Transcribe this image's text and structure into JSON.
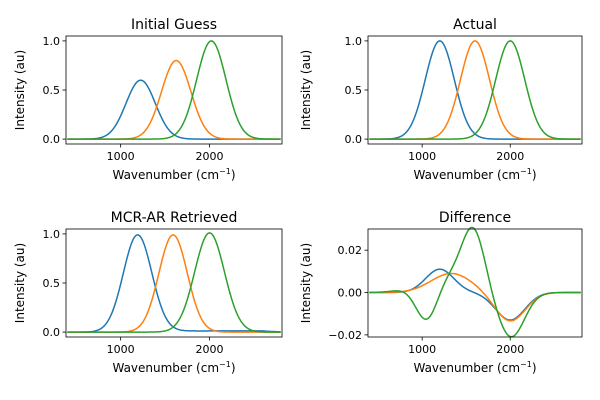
{
  "chart_data": [
    {
      "type": "line",
      "title": "Initial Guess",
      "xlabel": "Wavenumber (cm",
      "xlabel_sup": "−1",
      "xlabel_close": ")",
      "ylabel": "Intensity (au)",
      "xlim": [
        385,
        2815
      ],
      "ylim": [
        -0.05,
        1.05
      ],
      "xticks": [
        "1000",
        "2000"
      ],
      "yticks": [
        "0.0",
        "0.5",
        "1.0"
      ],
      "xtick_values": [
        1000,
        2000
      ],
      "ytick_values": [
        0,
        0.5,
        1
      ],
      "series": [
        {
          "color": "#1f77b4",
          "kind": "gauss",
          "amp": 0.6,
          "center": 1225,
          "sigma": 165
        },
        {
          "color": "#ff7f0e",
          "kind": "gauss",
          "amp": 0.8,
          "center": 1625,
          "sigma": 165
        },
        {
          "color": "#2ca02c",
          "kind": "gauss",
          "amp": 1.0,
          "center": 2020,
          "sigma": 165
        }
      ]
    },
    {
      "type": "line",
      "title": "Actual",
      "xlabel": "Wavenumber (cm",
      "xlabel_sup": "−1",
      "xlabel_close": ")",
      "ylabel": "Intensity (au)",
      "xlim": [
        385,
        2815
      ],
      "ylim": [
        -0.05,
        1.05
      ],
      "xticks": [
        "1000",
        "2000"
      ],
      "yticks": [
        "0.0",
        "0.5",
        "1.0"
      ],
      "xtick_values": [
        1000,
        2000
      ],
      "ytick_values": [
        0,
        0.5,
        1
      ],
      "series": [
        {
          "color": "#1f77b4",
          "kind": "gauss",
          "amp": 1.0,
          "center": 1200,
          "sigma": 165
        },
        {
          "color": "#ff7f0e",
          "kind": "gauss",
          "amp": 1.0,
          "center": 1600,
          "sigma": 165
        },
        {
          "color": "#2ca02c",
          "kind": "gauss",
          "amp": 1.0,
          "center": 2000,
          "sigma": 165
        }
      ]
    },
    {
      "type": "line",
      "title": "MCR-AR Retrieved",
      "xlabel": "Wavenumber (cm",
      "xlabel_sup": "−1",
      "xlabel_close": ")",
      "ylabel": "Intensity (au)",
      "xlim": [
        385,
        2815
      ],
      "ylim": [
        -0.05,
        1.05
      ],
      "xticks": [
        "1000",
        "2000"
      ],
      "yticks": [
        "0.0",
        "0.5",
        "1.0"
      ],
      "xtick_values": [
        1000,
        2000
      ],
      "ytick_values": [
        0,
        0.5,
        1
      ],
      "series": [
        {
          "color": "#1f77b4",
          "kind": "gauss",
          "amp": 0.99,
          "center": 1190,
          "sigma": 160,
          "tail": 0.012
        },
        {
          "color": "#ff7f0e",
          "kind": "gauss",
          "amp": 0.99,
          "center": 1590,
          "sigma": 160
        },
        {
          "color": "#2ca02c",
          "kind": "gauss",
          "amp": 1.01,
          "center": 2000,
          "sigma": 168
        }
      ]
    },
    {
      "type": "line",
      "title": "Difference",
      "xlabel": "Wavenumber (cm",
      "xlabel_sup": "−1",
      "xlabel_close": ")",
      "ylabel": "Intensity (au)",
      "xlim": [
        385,
        2815
      ],
      "ylim": [
        -0.021,
        0.03
      ],
      "xticks": [
        "1000",
        "2000"
      ],
      "yticks": [
        "−0.02",
        "0.00",
        "0.02"
      ],
      "xtick_values": [
        1000,
        2000
      ],
      "ytick_values": [
        -0.02,
        0,
        0.02
      ],
      "series": [
        {
          "color": "#1f77b4",
          "kind": "sum",
          "terms": [
            [
              0.011,
              1200,
              160
            ],
            [
              -0.013,
              2000,
              165
            ]
          ]
        },
        {
          "color": "#ff7f0e",
          "kind": "sum",
          "terms": [
            [
              0.009,
              1330,
              230
            ],
            [
              -0.0135,
              2000,
              170
            ]
          ]
        },
        {
          "color": "#2ca02c",
          "kind": "sum",
          "terms": [
            [
              0.011,
              1180,
              230
            ],
            [
              -0.022,
              1060,
              130
            ],
            [
              0.0285,
              1580,
              130
            ],
            [
              -0.021,
              2010,
              150
            ]
          ]
        }
      ]
    }
  ]
}
